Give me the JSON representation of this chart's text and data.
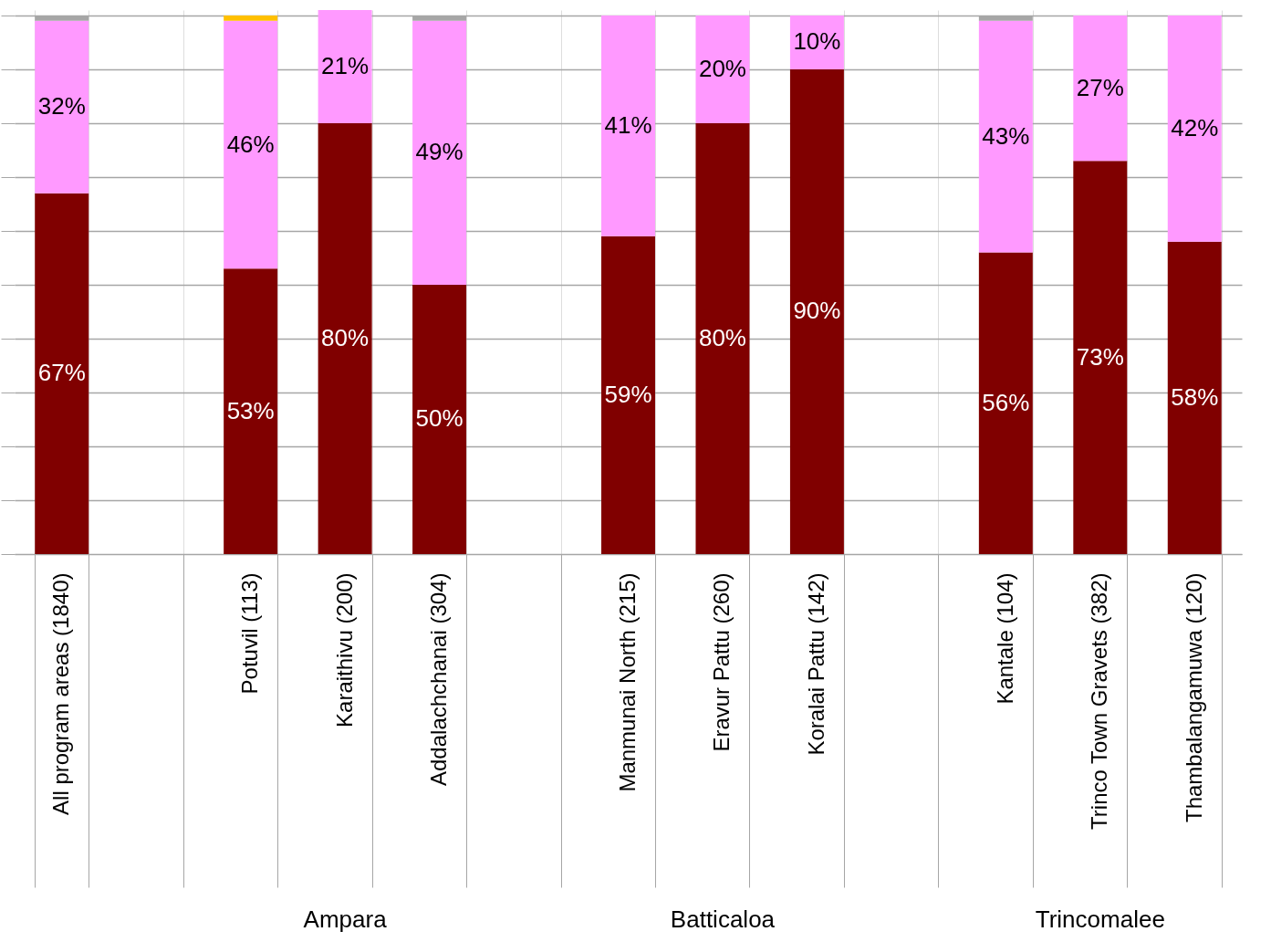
{
  "chart_data": {
    "type": "bar",
    "stacked": true,
    "categories": [
      "All program areas (1840)",
      null,
      "Potuvil (113)",
      "Karaithivu (200)",
      "Addalachchanai (304)",
      null,
      "Manmunai North (215)",
      "Eravur Pattu (260)",
      "Koralai Pattu (142)",
      null,
      "Kantale (104)",
      "Trinco Town Gravets (382)",
      "Thambalangamuwa (120)"
    ],
    "series": [
      {
        "color": "#800000",
        "values": [
          67,
          null,
          53,
          80,
          50,
          null,
          59,
          80,
          90,
          null,
          56,
          73,
          58
        ],
        "value_labels": [
          "67%",
          null,
          "53%",
          "80%",
          "50%",
          null,
          "59%",
          "80%",
          "90%",
          null,
          "56%",
          "73%",
          "58%"
        ]
      },
      {
        "color": "#ff99ff",
        "values": [
          32,
          null,
          46,
          21,
          49,
          null,
          41,
          20,
          10,
          null,
          43,
          27,
          42
        ],
        "value_labels": [
          "32%",
          null,
          "46%",
          "21%",
          "49%",
          null,
          "41%",
          "20%",
          "10%",
          null,
          "43%",
          "27%",
          "42%"
        ]
      },
      {
        "color": "#ffc000",
        "values": [
          0,
          null,
          1,
          0,
          0,
          null,
          0,
          0,
          0,
          null,
          0,
          0,
          0
        ]
      },
      {
        "color": "#a6a6a6",
        "values": [
          1,
          null,
          0,
          0,
          1,
          null,
          0,
          0,
          0,
          null,
          1,
          0,
          0
        ]
      }
    ],
    "ylim": [
      0,
      101
    ],
    "yticks": [
      {
        "value": 0,
        "label": null
      },
      {
        "value": 10,
        "label": null
      },
      {
        "value": 20,
        "label": null
      },
      {
        "value": 30,
        "label": null
      },
      {
        "value": 40,
        "label": null
      },
      {
        "value": 50,
        "label": null
      },
      {
        "value": 60,
        "label": null
      },
      {
        "value": 70,
        "label": null
      },
      {
        "value": 80,
        "label": null
      },
      {
        "value": 90,
        "label": null
      },
      {
        "value": 100,
        "label": null
      }
    ],
    "grid": true,
    "tick_labels": "x",
    "annotations": [
      "Ampara",
      "Batticaloa",
      "Trincomalee"
    ]
  }
}
